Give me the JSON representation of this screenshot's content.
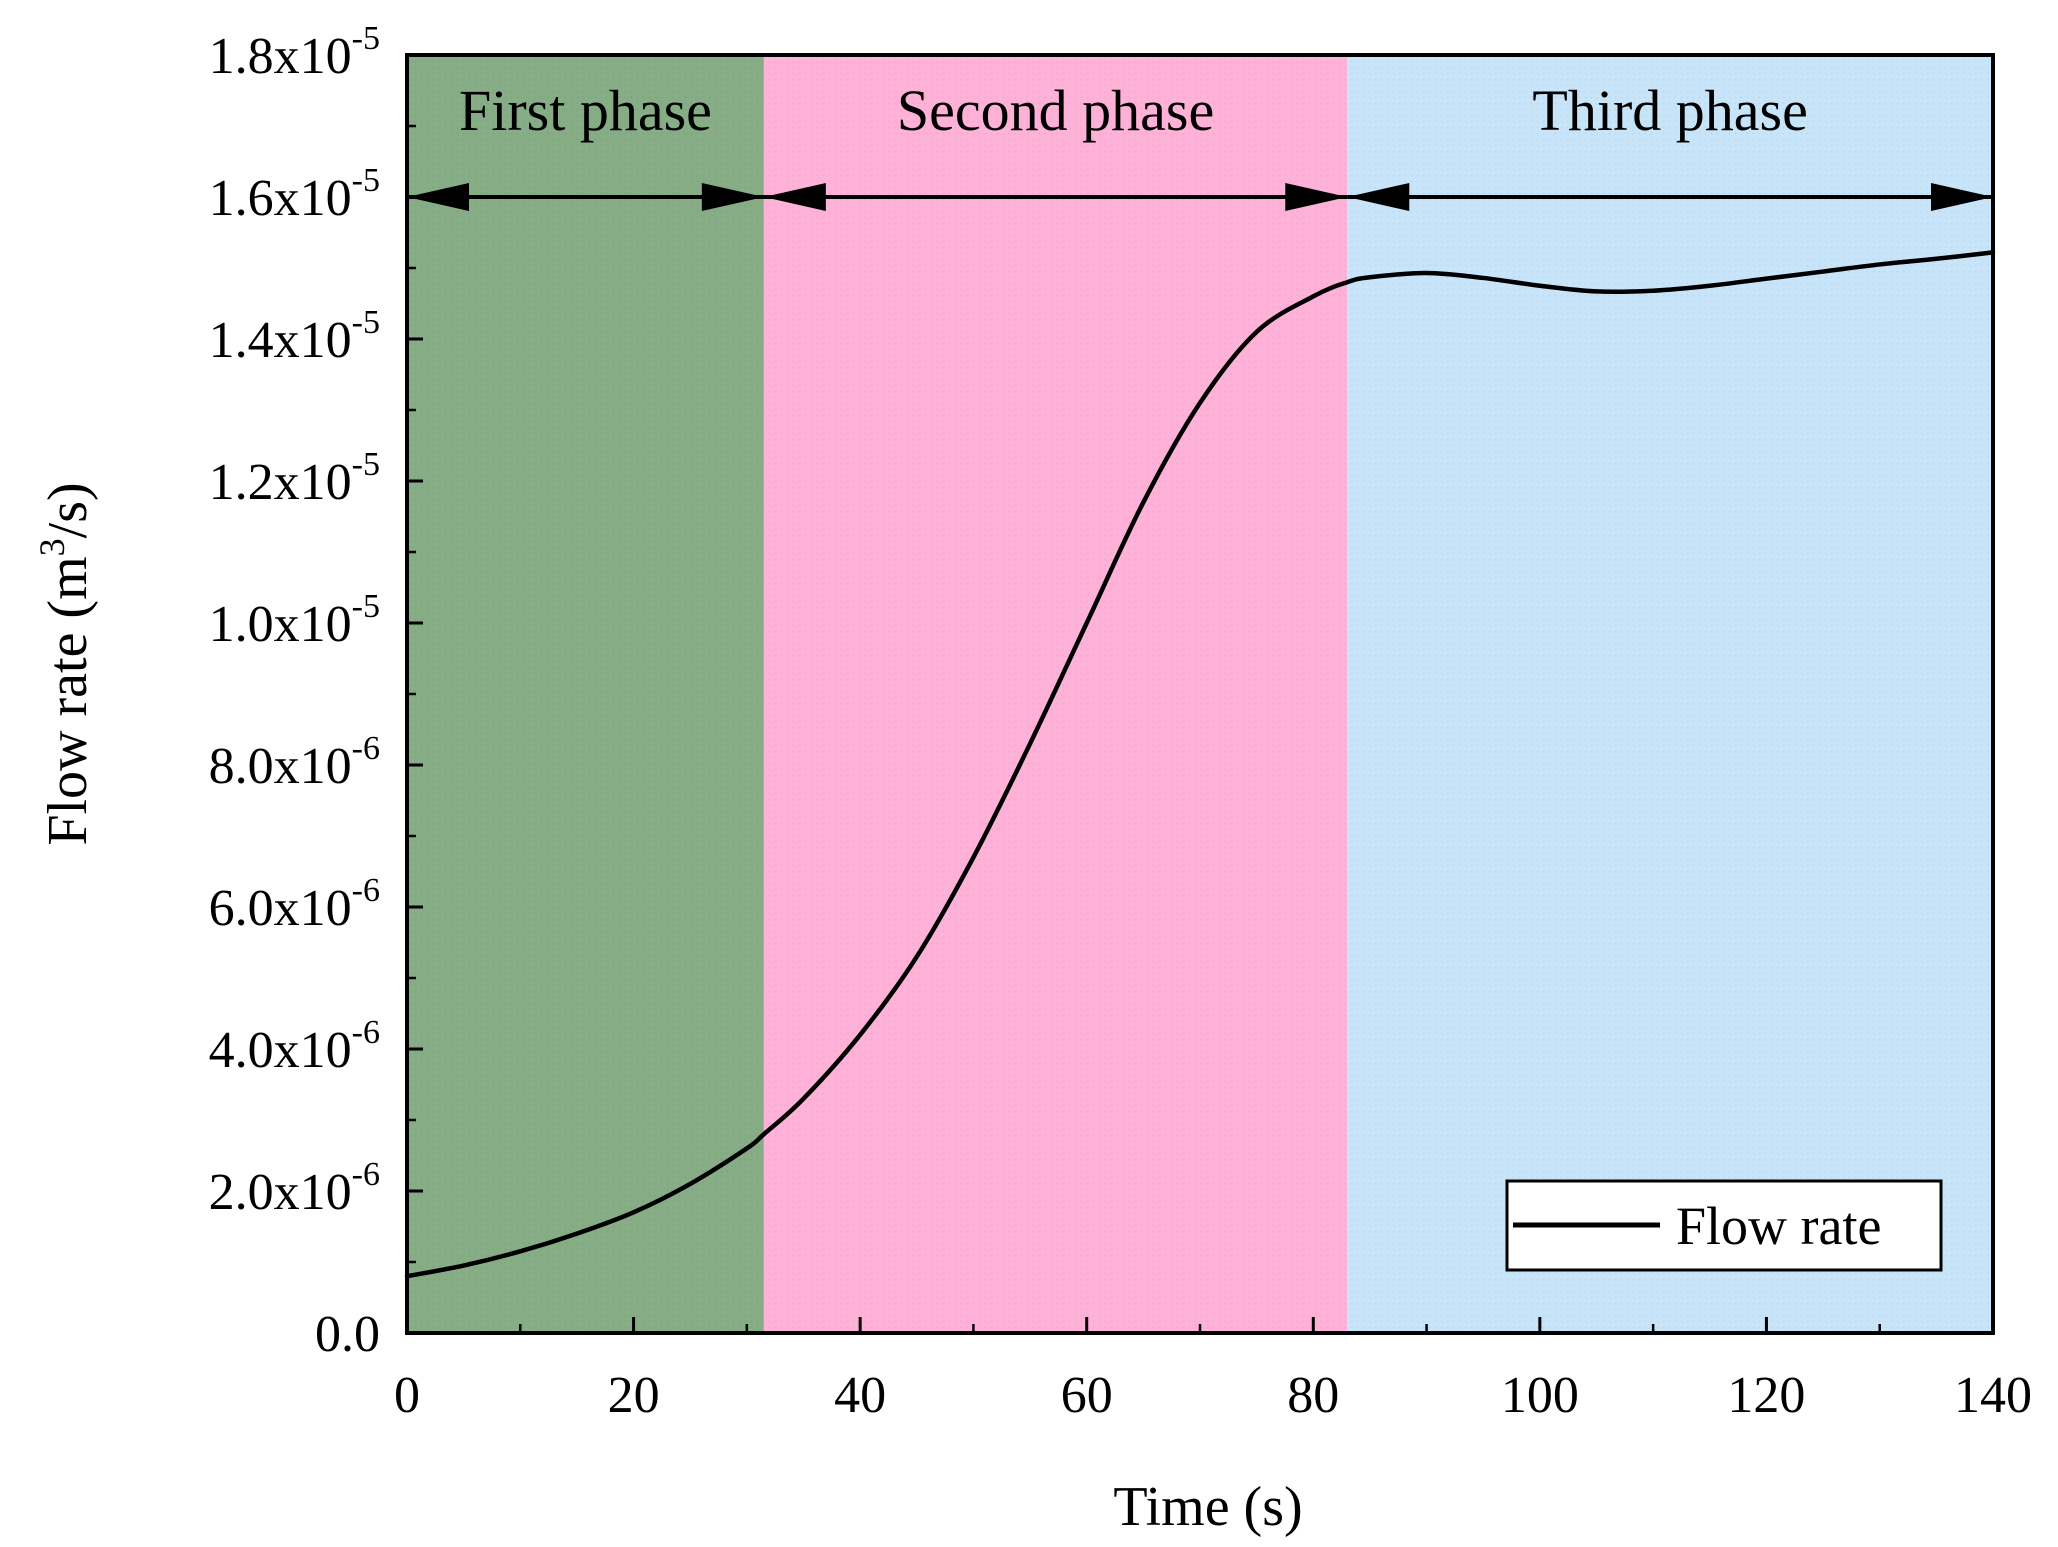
{
  "chart_data": {
    "type": "line",
    "xlabel": "Time (s)",
    "ylabel": {
      "prefix": "Flow rate (m",
      "sup": "3",
      "suffix": "/s)"
    },
    "xlim": [
      0,
      140
    ],
    "ylim": [
      0,
      1.8e-05
    ],
    "grid": false,
    "legend_placement": "bottom-right",
    "x_ticks": [
      {
        "value": 0,
        "label": "0"
      },
      {
        "value": 20,
        "label": "20"
      },
      {
        "value": 40,
        "label": "40"
      },
      {
        "value": 60,
        "label": "60"
      },
      {
        "value": 80,
        "label": "80"
      },
      {
        "value": 100,
        "label": "100"
      },
      {
        "value": 120,
        "label": "120"
      },
      {
        "value": 140,
        "label": "140"
      }
    ],
    "y_ticks": [
      {
        "value": 0,
        "mantissa": "0.0",
        "exp": ""
      },
      {
        "value": 2e-06,
        "mantissa": "2.0x10",
        "exp": "-6"
      },
      {
        "value": 4e-06,
        "mantissa": "4.0x10",
        "exp": "-6"
      },
      {
        "value": 6e-06,
        "mantissa": "6.0x10",
        "exp": "-6"
      },
      {
        "value": 8e-06,
        "mantissa": "8.0x10",
        "exp": "-6"
      },
      {
        "value": 1e-05,
        "mantissa": "1.0x10",
        "exp": "-5"
      },
      {
        "value": 1.2e-05,
        "mantissa": "1.2x10",
        "exp": "-5"
      },
      {
        "value": 1.4e-05,
        "mantissa": "1.4x10",
        "exp": "-5"
      },
      {
        "value": 1.6e-05,
        "mantissa": "1.6x10",
        "exp": "-5"
      },
      {
        "value": 1.8e-05,
        "mantissa": "1.8x10",
        "exp": "-5"
      }
    ],
    "phases": [
      {
        "label": "First phase",
        "start": 0,
        "end": 31.5,
        "color": "#86ad86"
      },
      {
        "label": "Second phase",
        "start": 31.5,
        "end": 83,
        "color": "#ffb2d8"
      },
      {
        "label": "Third phase",
        "start": 83,
        "end": 140,
        "color": "#c8e4f8"
      }
    ],
    "phase_arrow_y": 1.6e-05,
    "series": [
      {
        "name": "Flow rate",
        "color": "#000000",
        "x": [
          0,
          5,
          10,
          15,
          20,
          25,
          30,
          31.5,
          35,
          40,
          45,
          50,
          55,
          60,
          65,
          70,
          75,
          80,
          83,
          85,
          90,
          95,
          100,
          105,
          110,
          115,
          120,
          125,
          130,
          135,
          140
        ],
        "y": [
          8e-07,
          9.5e-07,
          1.15e-06,
          1.4e-06,
          1.7e-06,
          2.1e-06,
          2.6e-06,
          2.8e-06,
          3.3e-06,
          4.2e-06,
          5.3e-06,
          6.7e-06,
          8.3e-06,
          1e-05,
          1.17e-05,
          1.31e-05,
          1.41e-05,
          1.46e-05,
          1.48e-05,
          1.487e-05,
          1.493e-05,
          1.486e-05,
          1.475e-05,
          1.467e-05,
          1.468e-05,
          1.475e-05,
          1.485e-05,
          1.495e-05,
          1.505e-05,
          1.513e-05,
          1.522e-05
        ]
      }
    ]
  }
}
